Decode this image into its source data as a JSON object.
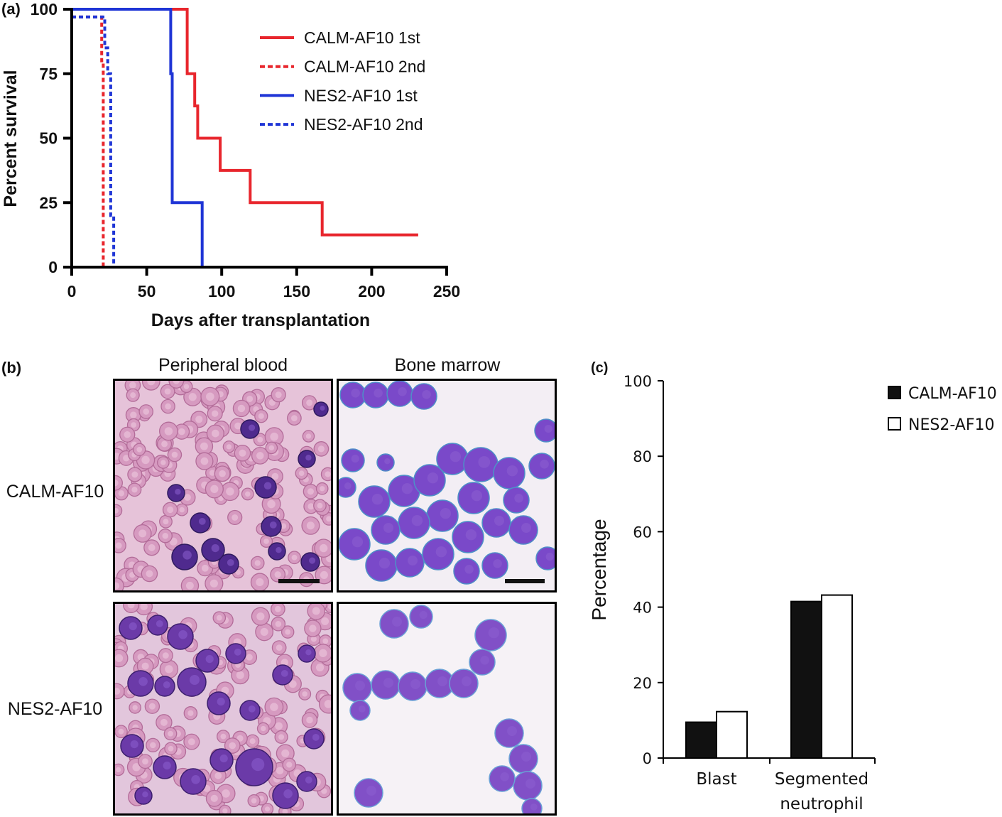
{
  "panel_labels": {
    "a": "(a)",
    "b": "(b)",
    "c": "(c)"
  },
  "micrographs": {
    "col_labels": [
      "Peripheral blood",
      "Bone marrow"
    ],
    "row_labels": [
      "CALM-AF10",
      "NES2-AF10"
    ]
  },
  "chart_data": [
    {
      "type": "line",
      "panel": "(a)",
      "xlabel": "Days after transplantation",
      "ylabel": "Percent survival",
      "xlim": [
        0,
        250
      ],
      "ylim": [
        0,
        100
      ],
      "xticks": [
        0,
        50,
        100,
        150,
        200,
        250
      ],
      "yticks": [
        0,
        25,
        50,
        75,
        100
      ],
      "legend_position": "top-right",
      "grid": false,
      "series": [
        {
          "name": "CALM-AF10 1st",
          "color": "#e8262d",
          "dash": "solid",
          "x": [
            0,
            77,
            77,
            82,
            82,
            84,
            84,
            99,
            99,
            119,
            119,
            167,
            167,
            231
          ],
          "y": [
            100,
            100,
            75,
            75,
            62.5,
            62.5,
            50,
            50,
            37.5,
            37.5,
            25,
            25,
            12.5,
            12.5
          ]
        },
        {
          "name": "CALM-AF10 2nd",
          "color": "#e8262d",
          "dash": "dashed",
          "x": [
            0,
            20,
            20,
            21,
            21
          ],
          "y": [
            97,
            97,
            80,
            80,
            0
          ]
        },
        {
          "name": "NES2-AF10 1st",
          "color": "#1f35d6",
          "dash": "solid",
          "x": [
            0,
            66,
            66,
            67,
            67,
            87,
            87
          ],
          "y": [
            100,
            100,
            75,
            75,
            25,
            25,
            0
          ]
        },
        {
          "name": "NES2-AF10 2nd",
          "color": "#1f35d6",
          "dash": "dashed",
          "x": [
            0,
            22,
            22,
            24,
            24,
            26,
            26,
            28,
            28
          ],
          "y": [
            97,
            97,
            85,
            85,
            75,
            75,
            20,
            20,
            0
          ]
        }
      ]
    },
    {
      "type": "bar",
      "panel": "(c)",
      "ylabel": "Percentage",
      "ylim": [
        0,
        100
      ],
      "yticks": [
        0,
        20,
        40,
        60,
        80,
        100
      ],
      "categories": [
        [
          "Blast"
        ],
        [
          "Segmented",
          "neutrophil"
        ]
      ],
      "legend_position": "top-right",
      "grid": false,
      "series": [
        {
          "name": "CALM-AF10",
          "color": "#111111",
          "values": [
            9.5,
            41.5
          ]
        },
        {
          "name": "NES2-AF10",
          "color": "#ffffff",
          "values": [
            12.3,
            43.2
          ]
        }
      ]
    }
  ]
}
